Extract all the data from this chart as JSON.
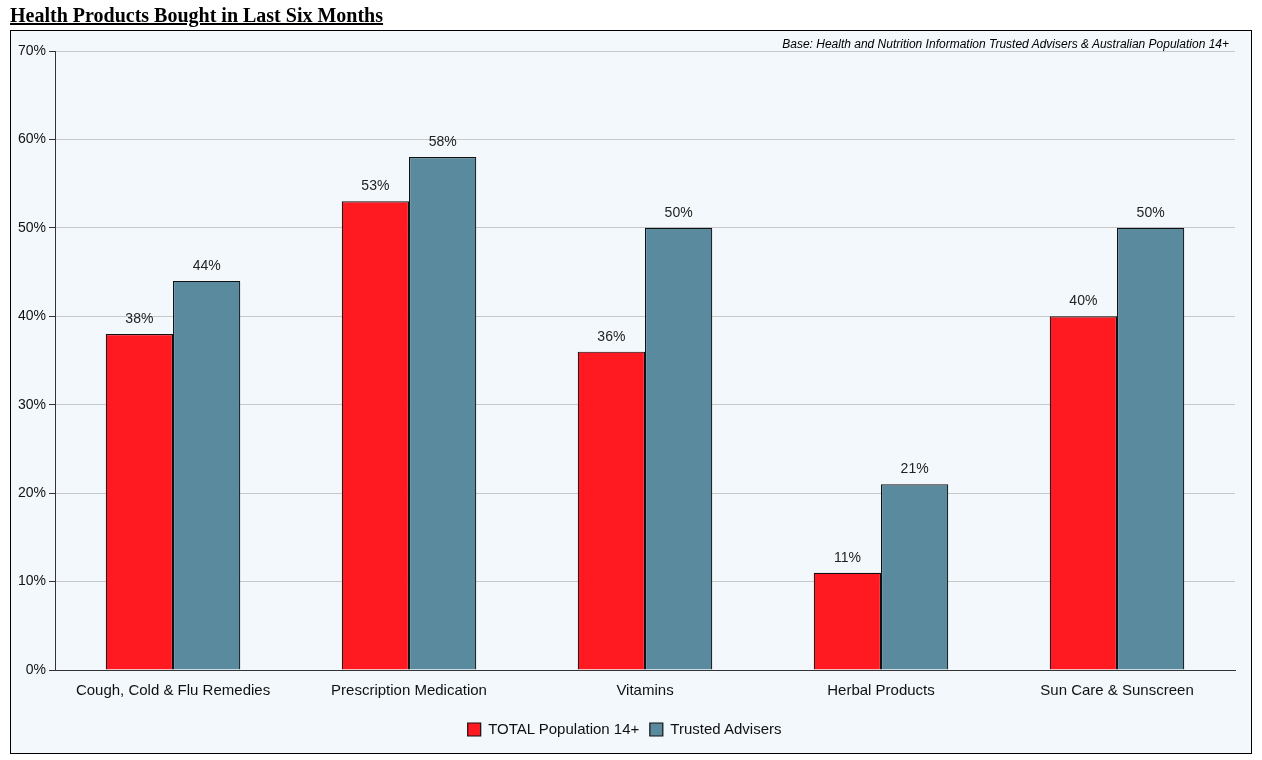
{
  "chart_data": {
    "type": "bar",
    "title": "Health Products Bought in Last Six Months",
    "categories": [
      "Cough, Cold & Flu Remedies",
      "Prescription Medication",
      "Vitamins",
      "Herbal Products",
      "Sun Care & Sunscreen"
    ],
    "series": [
      {
        "name": "TOTAL Population 14+",
        "color": "#ff1a22",
        "values": [
          38,
          53,
          36,
          11,
          40
        ],
        "value_labels": [
          "38%",
          "53%",
          "36%",
          "11%",
          "40%"
        ]
      },
      {
        "name": "Trusted Advisers",
        "color": "#5a8a9e",
        "values": [
          44,
          58,
          50,
          21,
          50
        ],
        "value_labels": [
          "44%",
          "58%",
          "50%",
          "21%",
          "50%"
        ]
      }
    ],
    "ylim": [
      0,
      70
    ],
    "yticks": [
      {
        "value": 0,
        "label": "0%"
      },
      {
        "value": 10,
        "label": "10%"
      },
      {
        "value": 20,
        "label": "20%"
      },
      {
        "value": 30,
        "label": "30%"
      },
      {
        "value": 40,
        "label": "40%"
      },
      {
        "value": 50,
        "label": "50%"
      },
      {
        "value": 60,
        "label": "60%"
      },
      {
        "value": 70,
        "label": "70%"
      }
    ],
    "grid": "y",
    "legend": "bottom",
    "annotations": [
      "Base: Health and Nutrition Information Trusted Advisers & Australian Population 14+"
    ]
  }
}
